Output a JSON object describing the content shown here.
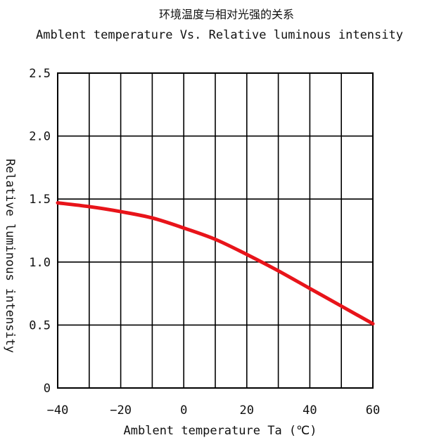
{
  "chart_data": {
    "type": "line",
    "title": "环境温度与相对光强的关系",
    "subtitle": "Amblent temperature Vs. Relative luminous intensity",
    "xlabel": "Amblent temperature Ta (℃)",
    "ylabel": "Relative luminous intensity",
    "xlim": [
      -40,
      60
    ],
    "ylim": [
      0,
      2.5
    ],
    "x_ticks": [
      -40,
      -20,
      0,
      20,
      40,
      60
    ],
    "x_tick_labels": [
      "−40",
      "−20",
      "0",
      "20",
      "40",
      "60"
    ],
    "y_ticks": [
      0,
      0.5,
      1.0,
      1.5,
      2.0,
      2.5
    ],
    "y_tick_labels": [
      "0",
      "0.5",
      "1.0",
      "1.5",
      "2.0",
      "2.5"
    ],
    "x_grid_step": 10,
    "y_grid_step": 0.5,
    "grid": true,
    "series": [
      {
        "color": "#e8141a",
        "x": [
          -40,
          -30,
          -20,
          -10,
          0,
          10,
          20,
          30,
          40,
          50,
          60
        ],
        "y": [
          1.47,
          1.44,
          1.4,
          1.35,
          1.27,
          1.18,
          1.06,
          0.93,
          0.79,
          0.65,
          0.51
        ]
      }
    ]
  }
}
